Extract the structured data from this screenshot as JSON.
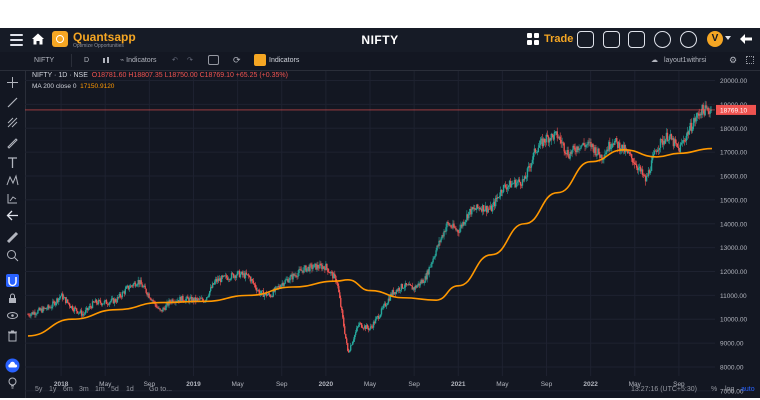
{
  "app": {
    "brand": "Quantsapp",
    "brand_tagline": "Optimize Opportunities",
    "title": "NIFTY",
    "trade_label": "Trade",
    "avatar_initial": "V"
  },
  "toolbar": {
    "symbol": "NIFTY",
    "resolution": "D",
    "indicators_label": "Indicators",
    "q_indicators_label": "Indicators",
    "layout_name": "layout1withrsi"
  },
  "legend": {
    "symbol_line": "NIFTY · 1D · NSE",
    "ohlc": "O18781.60  H18807.35  L18750.00  C18769.10  +65.25 (+0.35%)",
    "ma_label": "MA 200 close 0",
    "ma_value": "17150.9120"
  },
  "price_axis": {
    "ticks": [
      "20000.00",
      "19000.00",
      "18000.00",
      "17000.00",
      "16000.00",
      "15000.00",
      "14000.00",
      "13000.00",
      "12000.00",
      "11000.00",
      "10000.00",
      "9000.00",
      "8000.00",
      "7000.00"
    ],
    "last_price": "18769.10"
  },
  "time_axis": {
    "ticks": [
      "2018",
      "May",
      "Sep",
      "2019",
      "May",
      "Sep",
      "2020",
      "May",
      "Sep",
      "2021",
      "May",
      "Sep",
      "2022",
      "May",
      "Sep"
    ]
  },
  "bottom": {
    "ranges": [
      "5y",
      "1y",
      "6m",
      "3m",
      "1m",
      "5d",
      "1d"
    ],
    "goto": "Go to...",
    "clock": "13:27:16 (UTC+5:30)",
    "percent": "%",
    "log": "log",
    "auto": "auto"
  },
  "colors": {
    "accent": "#f5a623",
    "background": "#131722",
    "up_candle": "#26a69a",
    "down_candle": "#ef5350",
    "ma_line": "#ff9800",
    "active_tool": "#2962ff"
  },
  "icons": {
    "menu": "hamburger-icon",
    "home": "home-icon",
    "grid": "grid-icon",
    "screen": "screen-icon",
    "video": "video-camera-icon",
    "network": "network-icon",
    "share": "share-icon",
    "back": "back-arrow-icon"
  },
  "chart_data": {
    "type": "candlestick",
    "symbol": "NIFTY",
    "interval": "1D",
    "exchange": "NSE",
    "y_scale": "linear",
    "ylim": [
      6700,
      20400
    ],
    "x_range": [
      "2017-10",
      "2022-12"
    ],
    "last_close": 18769.1,
    "series": [
      {
        "name": "NIFTY",
        "points": [
          [
            "2017-10",
            10200
          ],
          [
            "2017-12",
            10500
          ],
          [
            "2018-01",
            11000
          ],
          [
            "2018-02",
            10500
          ],
          [
            "2018-03",
            10200
          ],
          [
            "2018-04",
            10700
          ],
          [
            "2018-05",
            10700
          ],
          [
            "2018-06",
            10800
          ],
          [
            "2018-07",
            11300
          ],
          [
            "2018-08",
            11600
          ],
          [
            "2018-09",
            11000
          ],
          [
            "2018-10",
            10300
          ],
          [
            "2018-11",
            10800
          ],
          [
            "2018-12",
            10850
          ],
          [
            "2019-01",
            10800
          ],
          [
            "2019-02",
            10800
          ],
          [
            "2019-03",
            11600
          ],
          [
            "2019-04",
            11750
          ],
          [
            "2019-05",
            11900
          ],
          [
            "2019-06",
            11800
          ],
          [
            "2019-07",
            11100
          ],
          [
            "2019-08",
            11000
          ],
          [
            "2019-09",
            11500
          ],
          [
            "2019-10",
            11800
          ],
          [
            "2019-11",
            12100
          ],
          [
            "2019-12",
            12200
          ],
          [
            "2020-01",
            12200
          ],
          [
            "2020-02",
            11600
          ],
          [
            "2020-03",
            8600
          ],
          [
            "2020-04",
            9800
          ],
          [
            "2020-05",
            9600
          ],
          [
            "2020-06",
            10300
          ],
          [
            "2020-07",
            11100
          ],
          [
            "2020-08",
            11400
          ],
          [
            "2020-09",
            11300
          ],
          [
            "2020-10",
            11700
          ],
          [
            "2020-11",
            12900
          ],
          [
            "2020-12",
            14000
          ],
          [
            "2021-01",
            13700
          ],
          [
            "2021-02",
            14500
          ],
          [
            "2021-03",
            14700
          ],
          [
            "2021-04",
            14600
          ],
          [
            "2021-05",
            15500
          ],
          [
            "2021-06",
            15700
          ],
          [
            "2021-07",
            15800
          ],
          [
            "2021-08",
            17100
          ],
          [
            "2021-09",
            17600
          ],
          [
            "2021-10",
            17700
          ],
          [
            "2021-11",
            16900
          ],
          [
            "2021-12",
            17300
          ],
          [
            "2022-01",
            17300
          ],
          [
            "2022-02",
            16800
          ],
          [
            "2022-03",
            17500
          ],
          [
            "2022-04",
            17100
          ],
          [
            "2022-05",
            16600
          ],
          [
            "2022-06",
            15800
          ],
          [
            "2022-07",
            17200
          ],
          [
            "2022-08",
            17700
          ],
          [
            "2022-09",
            17100
          ],
          [
            "2022-10",
            18000
          ],
          [
            "2022-11",
            18750
          ],
          [
            "2022-12",
            18769
          ]
        ]
      },
      {
        "name": "MA 200 close 0",
        "points": [
          [
            "2017-10",
            9300
          ],
          [
            "2018-02",
            10000
          ],
          [
            "2018-06",
            10400
          ],
          [
            "2018-10",
            10700
          ],
          [
            "2019-02",
            10750
          ],
          [
            "2019-06",
            11000
          ],
          [
            "2019-10",
            11350
          ],
          [
            "2020-02",
            11600
          ],
          [
            "2020-03",
            11650
          ],
          [
            "2020-05",
            11200
          ],
          [
            "2020-08",
            10900
          ],
          [
            "2020-11",
            10800
          ],
          [
            "2021-01",
            11400
          ],
          [
            "2021-04",
            12700
          ],
          [
            "2021-07",
            14000
          ],
          [
            "2021-10",
            15300
          ],
          [
            "2022-01",
            16600
          ],
          [
            "2022-04",
            17100
          ],
          [
            "2022-07",
            16800
          ],
          [
            "2022-09",
            16950
          ],
          [
            "2022-12",
            17151
          ]
        ]
      }
    ],
    "annotations": [
      "MA 200 close 0  17150.9120"
    ]
  }
}
